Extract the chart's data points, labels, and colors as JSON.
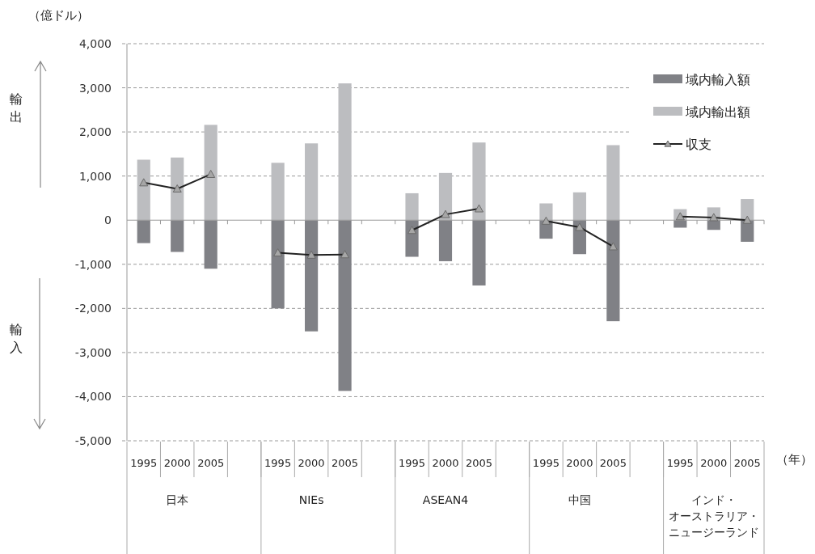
{
  "chart_data": {
    "type": "bar",
    "stacked": true,
    "ylabel": "（億ドル）",
    "xlabel": "（年）",
    "categories": [
      "1995",
      "2000",
      "2005",
      null,
      "1995",
      "2000",
      "2005",
      null,
      "1995",
      "2000",
      "2005",
      null,
      "1995",
      "2000",
      "2005",
      null,
      "1995",
      "2000",
      "2005"
    ],
    "series": [
      {
        "name": "域内輸入額",
        "color": "#808186",
        "values": [
          -520,
          -720,
          -1100,
          null,
          -2000,
          -2520,
          -3870,
          null,
          -830,
          -930,
          -1480,
          null,
          -420,
          -770,
          -2290,
          null,
          -170,
          -220,
          -490
        ]
      },
      {
        "name": "域内輸出額",
        "color": "#bcbdc0",
        "values": [
          1370,
          1420,
          2160,
          null,
          1300,
          1740,
          3100,
          null,
          610,
          1070,
          1760,
          null,
          380,
          630,
          1700,
          null,
          250,
          290,
          480
        ]
      },
      {
        "name": "収支",
        "type": "line",
        "color": "#222222",
        "marker": "triangle",
        "values": [
          850,
          710,
          1040,
          null,
          -740,
          -790,
          -780,
          null,
          -230,
          130,
          260,
          null,
          -20,
          -160,
          -600,
          null,
          80,
          60,
          0
        ]
      }
    ],
    "ylim": [
      -5000,
      4000
    ],
    "yticks": [
      {
        "value": -5000,
        "label": "-5,000"
      },
      {
        "value": -4000,
        "label": "-4,000"
      },
      {
        "value": -3000,
        "label": "-3,000"
      },
      {
        "value": -2000,
        "label": "-2,000"
      },
      {
        "value": -1000,
        "label": "-1,000"
      },
      0,
      {
        "value": 1000,
        "label": "1,000"
      },
      {
        "value": 2000,
        "label": "2,000"
      },
      {
        "value": 3000,
        "label": "3,000"
      },
      {
        "value": 4000,
        "label": "4,000"
      }
    ],
    "grid": "y",
    "legend": "top right",
    "annotations": [
      "日本",
      "NIEs",
      "ASEAN4",
      "中国",
      "インド・オーストラリア・ニュージーランド",
      "輸出",
      "輸入"
    ]
  }
}
